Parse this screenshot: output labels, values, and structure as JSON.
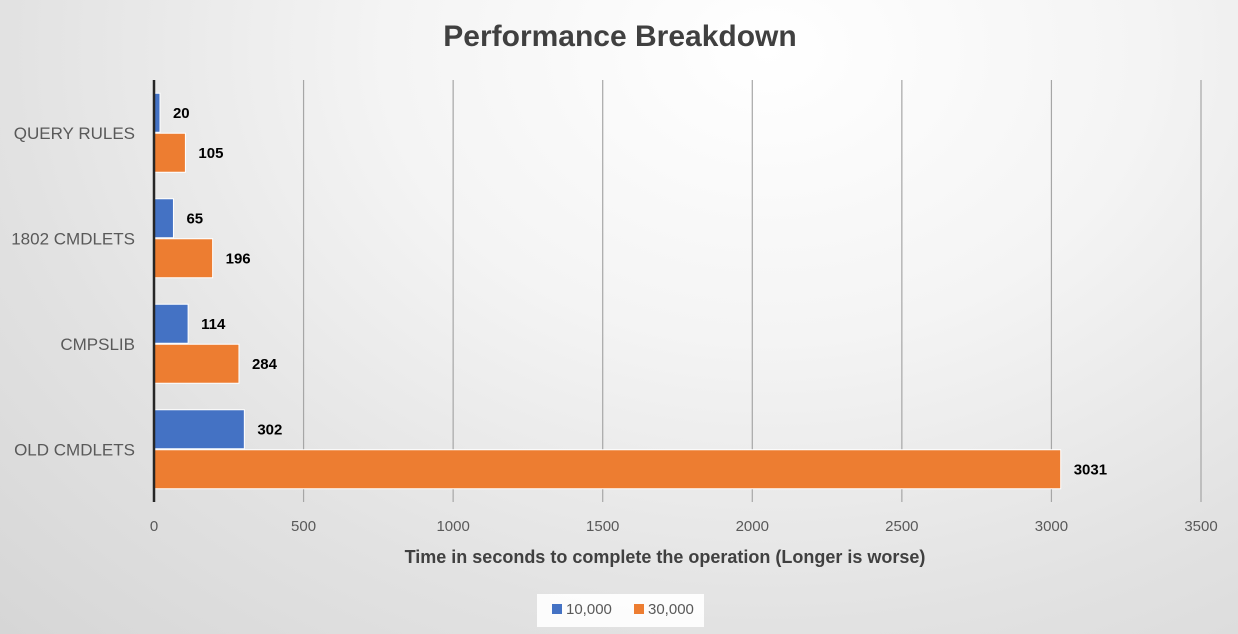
{
  "chart_data": {
    "type": "bar",
    "orientation": "horizontal",
    "title": "Performance Breakdown",
    "xlabel": "Time in seconds to complete the operation (Longer is worse)",
    "ylabel": "",
    "categories": [
      "QUERY RULES",
      "1802 CMDLETS",
      "CMPSLIB",
      "OLD CMDLETS"
    ],
    "series": [
      {
        "name": "10,000",
        "color": "#4472C4",
        "values": [
          20,
          65,
          114,
          302
        ]
      },
      {
        "name": "30,000",
        "color": "#ED7D31",
        "values": [
          105,
          196,
          284,
          3031
        ]
      }
    ],
    "xlim": [
      0,
      3500
    ],
    "xticks": [
      0,
      500,
      1000,
      1500,
      2000,
      2500,
      3000,
      3500
    ],
    "grid": true,
    "legend": "bottom",
    "data_labels": true
  }
}
